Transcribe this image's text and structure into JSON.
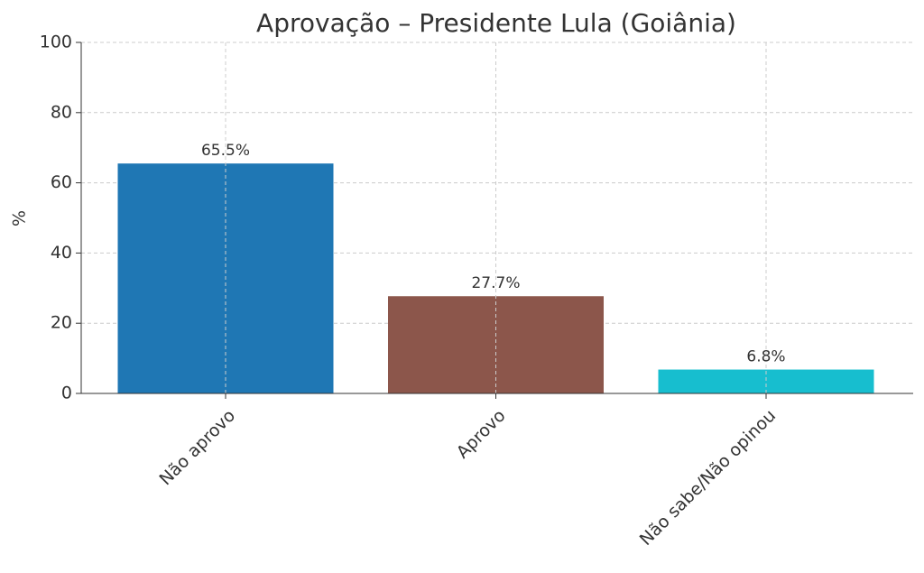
{
  "chart_data": {
    "type": "bar",
    "title": "Aprovação – Presidente Lula (Goiânia)",
    "y_label": "%",
    "categories": [
      "Não aprovo",
      "Aprovo",
      "Não sabe/Não opinou"
    ],
    "values": [
      65.5,
      27.7,
      6.8
    ],
    "value_labels": [
      "65.5%",
      "27.7%",
      "6.8%"
    ],
    "colors": [
      "#1f77b4",
      "#8c564b",
      "#17becf"
    ],
    "ylim": [
      0,
      100
    ],
    "yticks": [
      0,
      20,
      40,
      60,
      80,
      100
    ],
    "grid": true
  }
}
